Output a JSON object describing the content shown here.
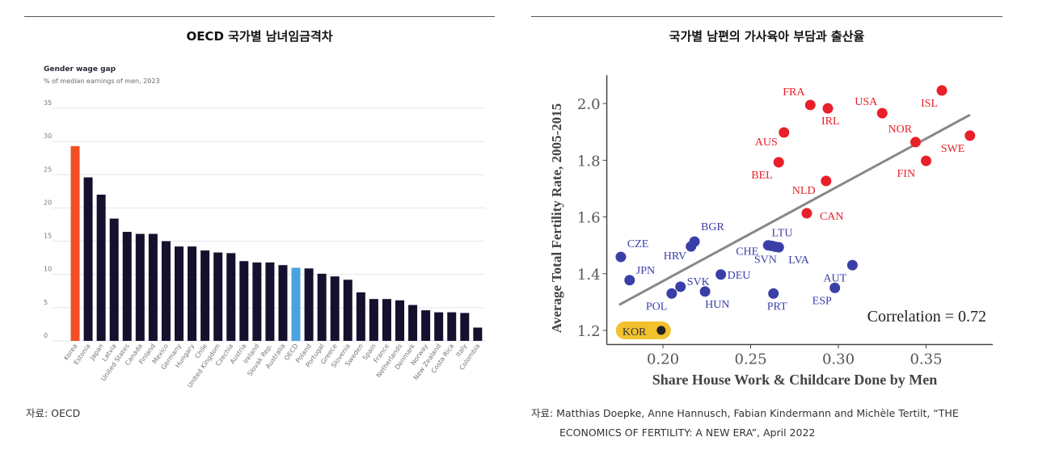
{
  "left_panel": {
    "title": "OECD 국가별 남녀임금격차",
    "source": "자료: OECD"
  },
  "right_panel": {
    "title": "국가별 남편의 가사육아 부담과 출산율",
    "source_line1": "자료: Matthias Doepke, Anne Hannusch, Fabian Kindermann and Michèle Tertilt, “THE",
    "source_line2": "ECONOMICS OF FERTILITY: A NEW ERA”, April 2022"
  },
  "chart_data": [
    {
      "type": "bar",
      "title": "Gender wage gap",
      "subtitle": "% of median earnings of men, 2023",
      "xlabel": "",
      "ylabel": "",
      "ylim": [
        0,
        35
      ],
      "yticks": [
        0,
        5,
        10,
        15,
        20,
        25,
        30,
        35
      ],
      "grid": true,
      "categories": [
        "Korea",
        "Estonia",
        "Japan",
        "Latvia",
        "United States",
        "Canada",
        "Finland",
        "Mexico",
        "Germany",
        "Hungary",
        "Chile",
        "United Kingdom",
        "Czechia",
        "Austria",
        "Ireland",
        "Slovak Rep.",
        "Australia",
        "OECD",
        "Poland",
        "Portugal",
        "Greece",
        "Slovenia",
        "Sweden",
        "Spain",
        "France",
        "Netherlands",
        "Denmark",
        "Norway",
        "New Zealand",
        "Costa Rica",
        "Italy",
        "Colombia"
      ],
      "values": [
        29.3,
        24.6,
        22.0,
        18.4,
        16.4,
        16.1,
        16.1,
        15.0,
        14.2,
        14.2,
        13.6,
        13.3,
        13.2,
        12.0,
        11.8,
        11.8,
        11.4,
        11.0,
        10.9,
        10.1,
        9.7,
        9.2,
        7.3,
        6.3,
        6.3,
        6.1,
        5.4,
        4.6,
        4.3,
        4.3,
        4.2,
        2.0
      ],
      "colors": {
        "default": "#14112e",
        "Korea": "#f04e23",
        "OECD": "#4aa3dc"
      }
    },
    {
      "type": "scatter",
      "xlabel": "Share House Work & Childcare Done by Men",
      "ylabel": "Average Total Fertility Rate, 2005-2015",
      "xlim": [
        0.168,
        0.388
      ],
      "ylim": [
        1.15,
        2.1
      ],
      "xticks": [
        "0.20",
        "0.25",
        "0.30",
        "0.35"
      ],
      "yticks": [
        "1.2",
        "1.4",
        "1.6",
        "1.8",
        "2.0"
      ],
      "annotation": "Correlation = 0.72",
      "trendline": [
        [
          0.175,
          1.29
        ],
        [
          0.375,
          1.96
        ]
      ],
      "colors": {
        "high": "#e8202a",
        "low": "#3a3fa8",
        "KOR": "#222222",
        "highlight": "#f2c12e",
        "trend": "#888888"
      },
      "points": [
        {
          "label": "CZE",
          "x": 0.176,
          "y": 1.459,
          "group": "low"
        },
        {
          "label": "JPN",
          "x": 0.181,
          "y": 1.377,
          "group": "low"
        },
        {
          "label": "POL",
          "x": 0.205,
          "y": 1.33,
          "group": "low"
        },
        {
          "label": "SVK",
          "x": 0.21,
          "y": 1.354,
          "group": "low"
        },
        {
          "label": "HRV",
          "x": 0.216,
          "y": 1.496,
          "group": "low"
        },
        {
          "label": "BGR",
          "x": 0.218,
          "y": 1.513,
          "group": "low"
        },
        {
          "label": "HUN",
          "x": 0.224,
          "y": 1.337,
          "group": "low"
        },
        {
          "label": "DEU",
          "x": 0.233,
          "y": 1.397,
          "group": "low"
        },
        {
          "label": "CHE",
          "x": 0.26,
          "y": 1.5,
          "group": "low"
        },
        {
          "label": "LTU",
          "x": 0.262,
          "y": 1.498,
          "group": "low"
        },
        {
          "label": "SVN",
          "x": 0.264,
          "y": 1.495,
          "group": "low"
        },
        {
          "label": "LVA",
          "x": 0.266,
          "y": 1.493,
          "group": "low"
        },
        {
          "label": "PRT",
          "x": 0.263,
          "y": 1.33,
          "group": "low"
        },
        {
          "label": "ESP",
          "x": 0.298,
          "y": 1.35,
          "group": "low"
        },
        {
          "label": "AUT",
          "x": 0.308,
          "y": 1.43,
          "group": "low"
        },
        {
          "label": "KOR",
          "x": 0.199,
          "y": 1.2,
          "group": "KOR"
        },
        {
          "label": "AUS",
          "x": 0.269,
          "y": 1.898,
          "group": "high"
        },
        {
          "label": "BEL",
          "x": 0.266,
          "y": 1.793,
          "group": "high"
        },
        {
          "label": "FRA",
          "x": 0.284,
          "y": 1.995,
          "group": "high"
        },
        {
          "label": "IRL",
          "x": 0.294,
          "y": 1.983,
          "group": "high"
        },
        {
          "label": "NLD",
          "x": 0.293,
          "y": 1.727,
          "group": "high"
        },
        {
          "label": "CAN",
          "x": 0.282,
          "y": 1.613,
          "group": "high"
        },
        {
          "label": "USA",
          "x": 0.325,
          "y": 1.966,
          "group": "high"
        },
        {
          "label": "ISL",
          "x": 0.359,
          "y": 2.046,
          "group": "high"
        },
        {
          "label": "NOR",
          "x": 0.344,
          "y": 1.864,
          "group": "high"
        },
        {
          "label": "FIN",
          "x": 0.35,
          "y": 1.798,
          "group": "high"
        },
        {
          "label": "SWE",
          "x": 0.375,
          "y": 1.887,
          "group": "high"
        }
      ]
    }
  ]
}
